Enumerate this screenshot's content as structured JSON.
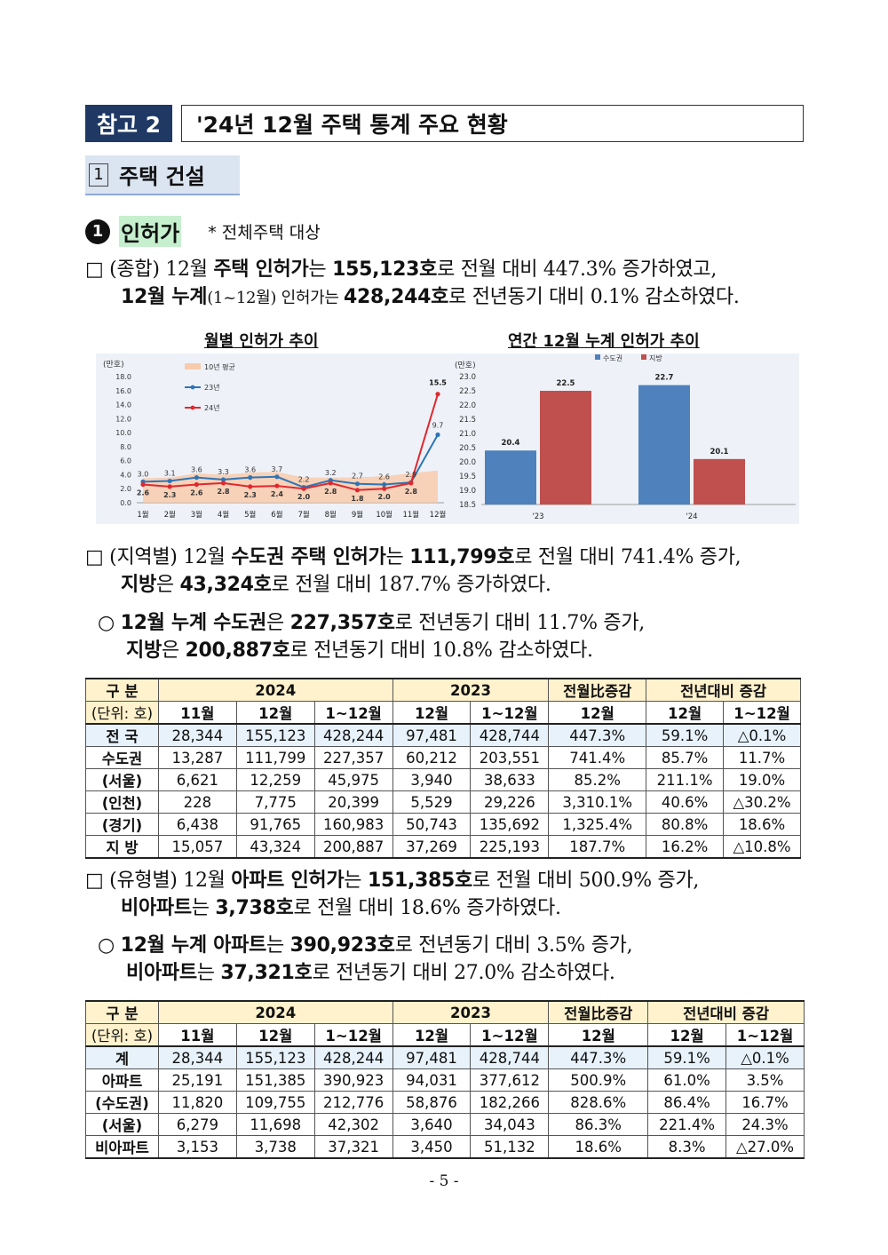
{
  "header": {
    "ref_label": "참고 2",
    "title": "'24년 12월 주택 통계 주요 현황"
  },
  "section": {
    "num": "1",
    "title": "주택 건설"
  },
  "subsection": {
    "num": "1",
    "title": "인허가",
    "note": "* 전체주택 대상"
  },
  "para1": {
    "line1": {
      "a": "□ (종합) 12월 ",
      "b": "주택 인허가",
      "c": "는 ",
      "d": "155,123호",
      "e": "로 전월 대비 447.3% 증가하였고,"
    },
    "line2": {
      "b": "12월 누계",
      "c": "(1~12월) 인허가는 ",
      "d": "428,244호",
      "e": "로 전년동기 대비 0.1% 감소하였다."
    }
  },
  "chart_monthly": {
    "title": "월별 인허가 추이",
    "unit": "(만호)",
    "legend": [
      "10년 평균",
      "23년",
      "24년"
    ],
    "colors": {
      "avg": "#f8cbad",
      "y23": "#2e75b6",
      "y24": "#e0282e"
    }
  },
  "chart_annual": {
    "title": "연간 12월 누계 인허가 추이",
    "unit": "(만호)",
    "legend": [
      "수도권",
      "지방"
    ],
    "colors": {
      "capital": "#4f81bd",
      "local": "#c0504d"
    }
  },
  "chart_data": [
    {
      "type": "line",
      "title": "월별 인허가 추이",
      "ylabel": "(만호)",
      "categories": [
        "1월",
        "2월",
        "3월",
        "4월",
        "5월",
        "6월",
        "7월",
        "8월",
        "9월",
        "10월",
        "11월",
        "12월"
      ],
      "y_ticks": [
        "0.0",
        "2.0",
        "4.0",
        "6.0",
        "8.0",
        "10.0",
        "12.0",
        "14.0",
        "16.0",
        "18.0"
      ],
      "ylim": [
        0,
        18
      ],
      "series": [
        {
          "name": "10년 평균",
          "kind": "area",
          "values": [
            3.5,
            3.6,
            4.2,
            4.0,
            4.3,
            4.4,
            3.6,
            3.6,
            3.6,
            3.8,
            4.2,
            4.6
          ]
        },
        {
          "name": "23년",
          "values": [
            3.0,
            3.1,
            3.6,
            3.3,
            3.6,
            3.7,
            2.2,
            3.2,
            2.7,
            2.6,
            2.9,
            9.7
          ],
          "labels": [
            "3.0",
            "3.1",
            "3.6",
            "3.3",
            "3.6",
            "3.7",
            "2.2",
            "3.2",
            "2.7",
            "2.6",
            "2.9",
            "9.7"
          ]
        },
        {
          "name": "24년",
          "values": [
            2.6,
            2.3,
            2.6,
            2.8,
            2.3,
            2.4,
            2.0,
            2.8,
            1.8,
            2.0,
            2.8,
            15.5
          ],
          "labels": [
            "2.6",
            "2.3",
            "2.6",
            "2.8",
            "2.3",
            "2.4",
            "2.0",
            "2.8",
            "1.8",
            "2.0",
            "2.8",
            "15.5"
          ]
        }
      ],
      "legend": "top-left"
    },
    {
      "type": "bar",
      "title": "연간 12월 누계 인허가 추이",
      "ylabel": "(만호)",
      "categories": [
        "'23",
        "'24"
      ],
      "y_ticks": [
        "18.5",
        "19.0",
        "19.5",
        "20.0",
        "20.5",
        "21.0",
        "21.5",
        "22.0",
        "22.5",
        "23.0"
      ],
      "ylim": [
        18.5,
        23.0
      ],
      "series": [
        {
          "name": "수도권",
          "values": [
            20.4,
            22.7
          ],
          "labels": [
            "20.4",
            "22.7"
          ]
        },
        {
          "name": "지방",
          "values": [
            22.5,
            20.1
          ],
          "labels": [
            "22.5",
            "20.1"
          ]
        }
      ],
      "legend": "top-center"
    }
  ],
  "para2": {
    "line1": {
      "a": "□ (지역별) 12월 ",
      "b": "수도권 주택 인허가",
      "c": "는 ",
      "d": "111,799호",
      "e": "로 전월 대비 741.4% 증가,"
    },
    "line2": {
      "b": "지방",
      "c": "은 ",
      "d": "43,324호",
      "e": "로 전월 대비 187.7% 증가하였다."
    }
  },
  "para3": {
    "line1": {
      "a": "○ ",
      "b": "12월 누계 수도권",
      "c": "은 ",
      "d": "227,357호",
      "e": "로 전년동기 대비 11.7% 증가,"
    },
    "line2": {
      "b": "지방",
      "c": "은 ",
      "d": "200,887호",
      "e": "로 전년동기 대비 10.8% 감소하였다."
    }
  },
  "table1": {
    "h_gubun": "구 분",
    "h_unit": "(단위: 호)",
    "h_2024": "2024",
    "h_2023": "2023",
    "h_mom": "전월比증감",
    "h_yoy": "전년대비 증감",
    "h_nov": "11월",
    "h_dec": "12월",
    "h_cum": "1~12월",
    "h_dec23": "12월",
    "h_cum23": "1~12월",
    "h_mom_dec": "12월",
    "h_yoy_dec": "12월",
    "h_yoy_cum": "1~12월",
    "rows": [
      {
        "label": "전 국",
        "v": [
          "28,344",
          "155,123",
          "428,244",
          "97,481",
          "428,744",
          "447.3%",
          "59.1%",
          "△0.1%"
        ]
      },
      {
        "label": "수도권",
        "v": [
          "13,287",
          "111,799",
          "227,357",
          "60,212",
          "203,551",
          "741.4%",
          "85.7%",
          "11.7%"
        ]
      },
      {
        "label": "(서울)",
        "v": [
          "6,621",
          "12,259",
          "45,975",
          "3,940",
          "38,633",
          "85.2%",
          "211.1%",
          "19.0%"
        ]
      },
      {
        "label": "(인천)",
        "v": [
          "228",
          "7,775",
          "20,399",
          "5,529",
          "29,226",
          "3,310.1%",
          "40.6%",
          "△30.2%"
        ]
      },
      {
        "label": "(경기)",
        "v": [
          "6,438",
          "91,765",
          "160,983",
          "50,743",
          "135,692",
          "1,325.4%",
          "80.8%",
          "18.6%"
        ]
      },
      {
        "label": "지 방",
        "v": [
          "15,057",
          "43,324",
          "200,887",
          "37,269",
          "225,193",
          "187.7%",
          "16.2%",
          "△10.8%"
        ]
      }
    ]
  },
  "para4": {
    "line1": {
      "a": "□ (유형별) 12월 ",
      "b": "아파트 인허가",
      "c": "는 ",
      "d": "151,385호",
      "e": "로 전월 대비 500.9% 증가,"
    },
    "line2": {
      "b": "비아파트",
      "c": "는 ",
      "d": "3,738호",
      "e": "로 전월 대비 18.6% 증가하였다."
    }
  },
  "para5": {
    "line1": {
      "a": "○ ",
      "b": "12월 누계 아파트",
      "c": "는 ",
      "d": "390,923호",
      "e": "로 전년동기 대비 3.5% 증가,"
    },
    "line2": {
      "b": "비아파트",
      "c": "는 ",
      "d": "37,321호",
      "e": "로 전년동기 대비 27.0% 감소하였다."
    }
  },
  "table2": {
    "h_gubun": "구 분",
    "h_unit": "(단위: 호)",
    "h_2024": "2024",
    "h_2023": "2023",
    "h_mom": "전월比증감",
    "h_yoy": "전년대비 증감",
    "h_nov": "11월",
    "h_dec": "12월",
    "h_cum": "1~12월",
    "h_dec23": "12월",
    "h_cum23": "1~12월",
    "h_mom_dec": "12월",
    "h_yoy_dec": "12월",
    "h_yoy_cum": "1~12월",
    "rows": [
      {
        "label": "계",
        "v": [
          "28,344",
          "155,123",
          "428,244",
          "97,481",
          "428,744",
          "447.3%",
          "59.1%",
          "△0.1%"
        ]
      },
      {
        "label": "아파트",
        "v": [
          "25,191",
          "151,385",
          "390,923",
          "94,031",
          "377,612",
          "500.9%",
          "61.0%",
          "3.5%"
        ]
      },
      {
        "label": "(수도권)",
        "v": [
          "11,820",
          "109,755",
          "212,776",
          "58,876",
          "182,266",
          "828.6%",
          "86.4%",
          "16.7%"
        ]
      },
      {
        "label": "(서울)",
        "v": [
          "6,279",
          "11,698",
          "42,302",
          "3,640",
          "34,043",
          "86.3%",
          "221.4%",
          "24.3%"
        ]
      },
      {
        "label": "비아파트",
        "v": [
          "3,153",
          "3,738",
          "37,321",
          "3,450",
          "51,132",
          "18.6%",
          "8.3%",
          "△27.0%"
        ]
      }
    ]
  },
  "page_number": "- 5 -"
}
